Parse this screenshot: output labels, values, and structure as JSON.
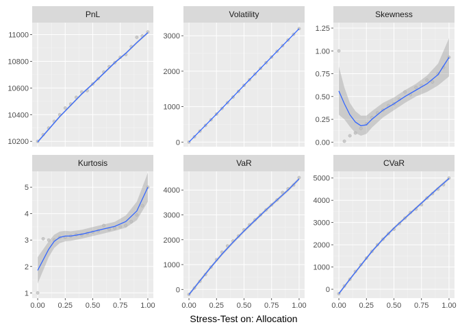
{
  "colors": {
    "panel_background": "#EBEBEB",
    "strip_background": "#D9D9D9",
    "grid_major": "#FFFFFF",
    "grid_minor": "#F5F5F5",
    "smooth_line": "#3366FF",
    "confidence_band": "#999999",
    "points": "#BDBDBD"
  },
  "chart_data": {
    "type": "line",
    "layout": "facet-grid 2x3",
    "xlabel": "Stress-Test on: Allocation",
    "ylabel": "",
    "x_ticks": [
      "0.00",
      "0.25",
      "0.50",
      "0.75",
      "1.00"
    ],
    "panels": [
      {
        "name": "PnL",
        "ylim": [
          10160,
          11090
        ],
        "y_ticks": [
          10200,
          10400,
          10600,
          10800,
          11000
        ],
        "points": [
          [
            0,
            10200
          ],
          [
            0.05,
            10250
          ],
          [
            0.1,
            10300
          ],
          [
            0.15,
            10350
          ],
          [
            0.2,
            10400
          ],
          [
            0.25,
            10450
          ],
          [
            0.3,
            10480
          ],
          [
            0.35,
            10530
          ],
          [
            0.4,
            10570
          ],
          [
            0.45,
            10580
          ],
          [
            0.5,
            10630
          ],
          [
            0.55,
            10670
          ],
          [
            0.6,
            10720
          ],
          [
            0.65,
            10760
          ],
          [
            0.7,
            10790
          ],
          [
            0.75,
            10830
          ],
          [
            0.8,
            10850
          ],
          [
            0.85,
            10910
          ],
          [
            0.9,
            10980
          ],
          [
            0.95,
            10990
          ],
          [
            1,
            11020
          ]
        ],
        "smooth": [
          [
            0,
            10195
          ],
          [
            0.1,
            10290
          ],
          [
            0.2,
            10385
          ],
          [
            0.3,
            10470
          ],
          [
            0.4,
            10555
          ],
          [
            0.5,
            10630
          ],
          [
            0.6,
            10710
          ],
          [
            0.7,
            10790
          ],
          [
            0.8,
            10860
          ],
          [
            0.9,
            10940
          ],
          [
            1,
            11015
          ]
        ],
        "band_halfwidth": 8
      },
      {
        "name": "Volatility",
        "ylim": [
          -130,
          3370
        ],
        "y_ticks": [
          0,
          1000,
          2000,
          3000
        ],
        "points": [
          [
            0,
            0
          ],
          [
            0.05,
            150
          ],
          [
            0.1,
            310
          ],
          [
            0.15,
            470
          ],
          [
            0.2,
            630
          ],
          [
            0.25,
            790
          ],
          [
            0.3,
            950
          ],
          [
            0.35,
            1110
          ],
          [
            0.4,
            1270
          ],
          [
            0.45,
            1430
          ],
          [
            0.5,
            1600
          ],
          [
            0.55,
            1760
          ],
          [
            0.6,
            1920
          ],
          [
            0.65,
            2080
          ],
          [
            0.7,
            2240
          ],
          [
            0.75,
            2400
          ],
          [
            0.8,
            2560
          ],
          [
            0.85,
            2720
          ],
          [
            0.9,
            2880
          ],
          [
            0.95,
            3040
          ],
          [
            1,
            3200
          ]
        ],
        "smooth": [
          [
            0,
            0
          ],
          [
            0.25,
            790
          ],
          [
            0.5,
            1600
          ],
          [
            0.75,
            2400
          ],
          [
            1,
            3200
          ]
        ],
        "band_halfwidth": 12
      },
      {
        "name": "Skewness",
        "ylim": [
          -0.05,
          1.31
        ],
        "y_ticks": [
          0.0,
          0.25,
          0.5,
          0.75,
          1.0,
          1.25
        ],
        "points": [
          [
            0,
            1.0
          ],
          [
            0.05,
            0.01
          ],
          [
            0.1,
            0.07
          ],
          [
            0.15,
            0.1
          ],
          [
            0.2,
            0.15
          ],
          [
            0.25,
            0.2
          ],
          [
            0.3,
            0.27
          ],
          [
            0.35,
            0.32
          ],
          [
            0.4,
            0.35
          ],
          [
            0.45,
            0.4
          ],
          [
            0.5,
            0.42
          ],
          [
            0.55,
            0.47
          ],
          [
            0.6,
            0.55
          ],
          [
            0.65,
            0.52
          ],
          [
            0.7,
            0.6
          ],
          [
            0.75,
            0.62
          ],
          [
            0.8,
            0.68
          ],
          [
            0.85,
            0.66
          ],
          [
            0.9,
            0.75
          ],
          [
            0.95,
            0.82
          ],
          [
            1,
            0.93
          ]
        ],
        "smooth": [
          [
            0,
            0.56
          ],
          [
            0.05,
            0.42
          ],
          [
            0.1,
            0.3
          ],
          [
            0.15,
            0.22
          ],
          [
            0.2,
            0.18
          ],
          [
            0.25,
            0.19
          ],
          [
            0.3,
            0.25
          ],
          [
            0.4,
            0.35
          ],
          [
            0.5,
            0.42
          ],
          [
            0.6,
            0.5
          ],
          [
            0.7,
            0.57
          ],
          [
            0.8,
            0.64
          ],
          [
            0.9,
            0.74
          ],
          [
            1,
            0.93
          ]
        ],
        "band_lower": [
          [
            0,
            0.3
          ],
          [
            0.05,
            0.25
          ],
          [
            0.1,
            0.17
          ],
          [
            0.15,
            0.1
          ],
          [
            0.2,
            0.07
          ],
          [
            0.25,
            0.09
          ],
          [
            0.3,
            0.16
          ],
          [
            0.4,
            0.27
          ],
          [
            0.5,
            0.35
          ],
          [
            0.6,
            0.43
          ],
          [
            0.7,
            0.5
          ],
          [
            0.8,
            0.55
          ],
          [
            0.9,
            0.62
          ],
          [
            1,
            0.72
          ]
        ],
        "band_upper": [
          [
            0,
            0.83
          ],
          [
            0.05,
            0.6
          ],
          [
            0.1,
            0.43
          ],
          [
            0.15,
            0.34
          ],
          [
            0.2,
            0.29
          ],
          [
            0.25,
            0.29
          ],
          [
            0.3,
            0.34
          ],
          [
            0.4,
            0.43
          ],
          [
            0.5,
            0.49
          ],
          [
            0.6,
            0.57
          ],
          [
            0.7,
            0.64
          ],
          [
            0.8,
            0.73
          ],
          [
            0.9,
            0.86
          ],
          [
            1,
            1.14
          ]
        ]
      },
      {
        "name": "Kurtosis",
        "ylim": [
          0.8,
          5.6
        ],
        "y_ticks": [
          1,
          2,
          3,
          4,
          5
        ],
        "points": [
          [
            0,
            1.0
          ],
          [
            0.05,
            3.05
          ],
          [
            0.1,
            3.0
          ],
          [
            0.15,
            3.0
          ],
          [
            0.2,
            3.1
          ],
          [
            0.25,
            3.1
          ],
          [
            0.3,
            3.15
          ],
          [
            0.35,
            3.2
          ],
          [
            0.4,
            3.2
          ],
          [
            0.45,
            3.25
          ],
          [
            0.5,
            3.3
          ],
          [
            0.55,
            3.35
          ],
          [
            0.6,
            3.55
          ],
          [
            0.65,
            3.4
          ],
          [
            0.7,
            3.45
          ],
          [
            0.75,
            3.5
          ],
          [
            0.8,
            3.55
          ],
          [
            0.85,
            3.7
          ],
          [
            0.9,
            3.95
          ],
          [
            0.95,
            4.3
          ],
          [
            1,
            5.0
          ]
        ],
        "smooth": [
          [
            0,
            1.85
          ],
          [
            0.05,
            2.25
          ],
          [
            0.1,
            2.65
          ],
          [
            0.15,
            2.95
          ],
          [
            0.2,
            3.1
          ],
          [
            0.25,
            3.15
          ],
          [
            0.3,
            3.15
          ],
          [
            0.4,
            3.22
          ],
          [
            0.5,
            3.32
          ],
          [
            0.6,
            3.42
          ],
          [
            0.7,
            3.52
          ],
          [
            0.8,
            3.7
          ],
          [
            0.9,
            4.1
          ],
          [
            1,
            5.0
          ]
        ],
        "band_lower": [
          [
            0,
            1.35
          ],
          [
            0.05,
            1.85
          ],
          [
            0.1,
            2.35
          ],
          [
            0.15,
            2.7
          ],
          [
            0.2,
            2.88
          ],
          [
            0.25,
            2.95
          ],
          [
            0.3,
            2.97
          ],
          [
            0.4,
            3.05
          ],
          [
            0.5,
            3.15
          ],
          [
            0.6,
            3.25
          ],
          [
            0.7,
            3.35
          ],
          [
            0.8,
            3.47
          ],
          [
            0.9,
            3.75
          ],
          [
            1,
            4.45
          ]
        ],
        "band_upper": [
          [
            0,
            2.35
          ],
          [
            0.05,
            2.65
          ],
          [
            0.1,
            2.95
          ],
          [
            0.15,
            3.2
          ],
          [
            0.2,
            3.32
          ],
          [
            0.25,
            3.35
          ],
          [
            0.3,
            3.33
          ],
          [
            0.4,
            3.39
          ],
          [
            0.5,
            3.49
          ],
          [
            0.6,
            3.59
          ],
          [
            0.7,
            3.69
          ],
          [
            0.8,
            3.93
          ],
          [
            0.9,
            4.45
          ],
          [
            1,
            5.55
          ]
        ]
      },
      {
        "name": "VaR",
        "ylim": [
          -350,
          4750
        ],
        "y_ticks": [
          0,
          1000,
          2000,
          3000,
          4000
        ],
        "points": [
          [
            0,
            -200
          ],
          [
            0.05,
            60
          ],
          [
            0.1,
            330
          ],
          [
            0.15,
            600
          ],
          [
            0.2,
            900
          ],
          [
            0.25,
            1200
          ],
          [
            0.3,
            1500
          ],
          [
            0.35,
            1750
          ],
          [
            0.4,
            1950
          ],
          [
            0.45,
            2150
          ],
          [
            0.5,
            2400
          ],
          [
            0.55,
            2600
          ],
          [
            0.6,
            2800
          ],
          [
            0.65,
            3000
          ],
          [
            0.7,
            3200
          ],
          [
            0.75,
            3400
          ],
          [
            0.8,
            3600
          ],
          [
            0.85,
            3900
          ],
          [
            0.9,
            4050
          ],
          [
            0.95,
            4200
          ],
          [
            1,
            4500
          ]
        ],
        "smooth": [
          [
            0,
            -210
          ],
          [
            0.1,
            350
          ],
          [
            0.2,
            900
          ],
          [
            0.3,
            1420
          ],
          [
            0.4,
            1900
          ],
          [
            0.5,
            2350
          ],
          [
            0.6,
            2780
          ],
          [
            0.7,
            3200
          ],
          [
            0.8,
            3600
          ],
          [
            0.9,
            4000
          ],
          [
            1,
            4450
          ]
        ],
        "band_halfwidth": 60
      },
      {
        "name": "CVaR",
        "ylim": [
          -400,
          5300
        ],
        "y_ticks": [
          0,
          1000,
          2000,
          3000,
          4000,
          5000
        ],
        "points": [
          [
            0,
            -200
          ],
          [
            0.05,
            150
          ],
          [
            0.1,
            450
          ],
          [
            0.15,
            800
          ],
          [
            0.2,
            1100
          ],
          [
            0.25,
            1400
          ],
          [
            0.3,
            1700
          ],
          [
            0.35,
            2000
          ],
          [
            0.4,
            2250
          ],
          [
            0.45,
            2500
          ],
          [
            0.5,
            2700
          ],
          [
            0.55,
            2950
          ],
          [
            0.6,
            3200
          ],
          [
            0.65,
            3450
          ],
          [
            0.7,
            3600
          ],
          [
            0.75,
            3800
          ],
          [
            0.8,
            4100
          ],
          [
            0.85,
            4300
          ],
          [
            0.9,
            4500
          ],
          [
            0.95,
            4700
          ],
          [
            1,
            5000
          ]
        ],
        "smooth": [
          [
            0,
            -200
          ],
          [
            0.1,
            450
          ],
          [
            0.2,
            1080
          ],
          [
            0.3,
            1700
          ],
          [
            0.4,
            2250
          ],
          [
            0.5,
            2750
          ],
          [
            0.6,
            3200
          ],
          [
            0.7,
            3650
          ],
          [
            0.8,
            4100
          ],
          [
            0.9,
            4550
          ],
          [
            1,
            4980
          ]
        ],
        "band_halfwidth": 60
      }
    ]
  }
}
